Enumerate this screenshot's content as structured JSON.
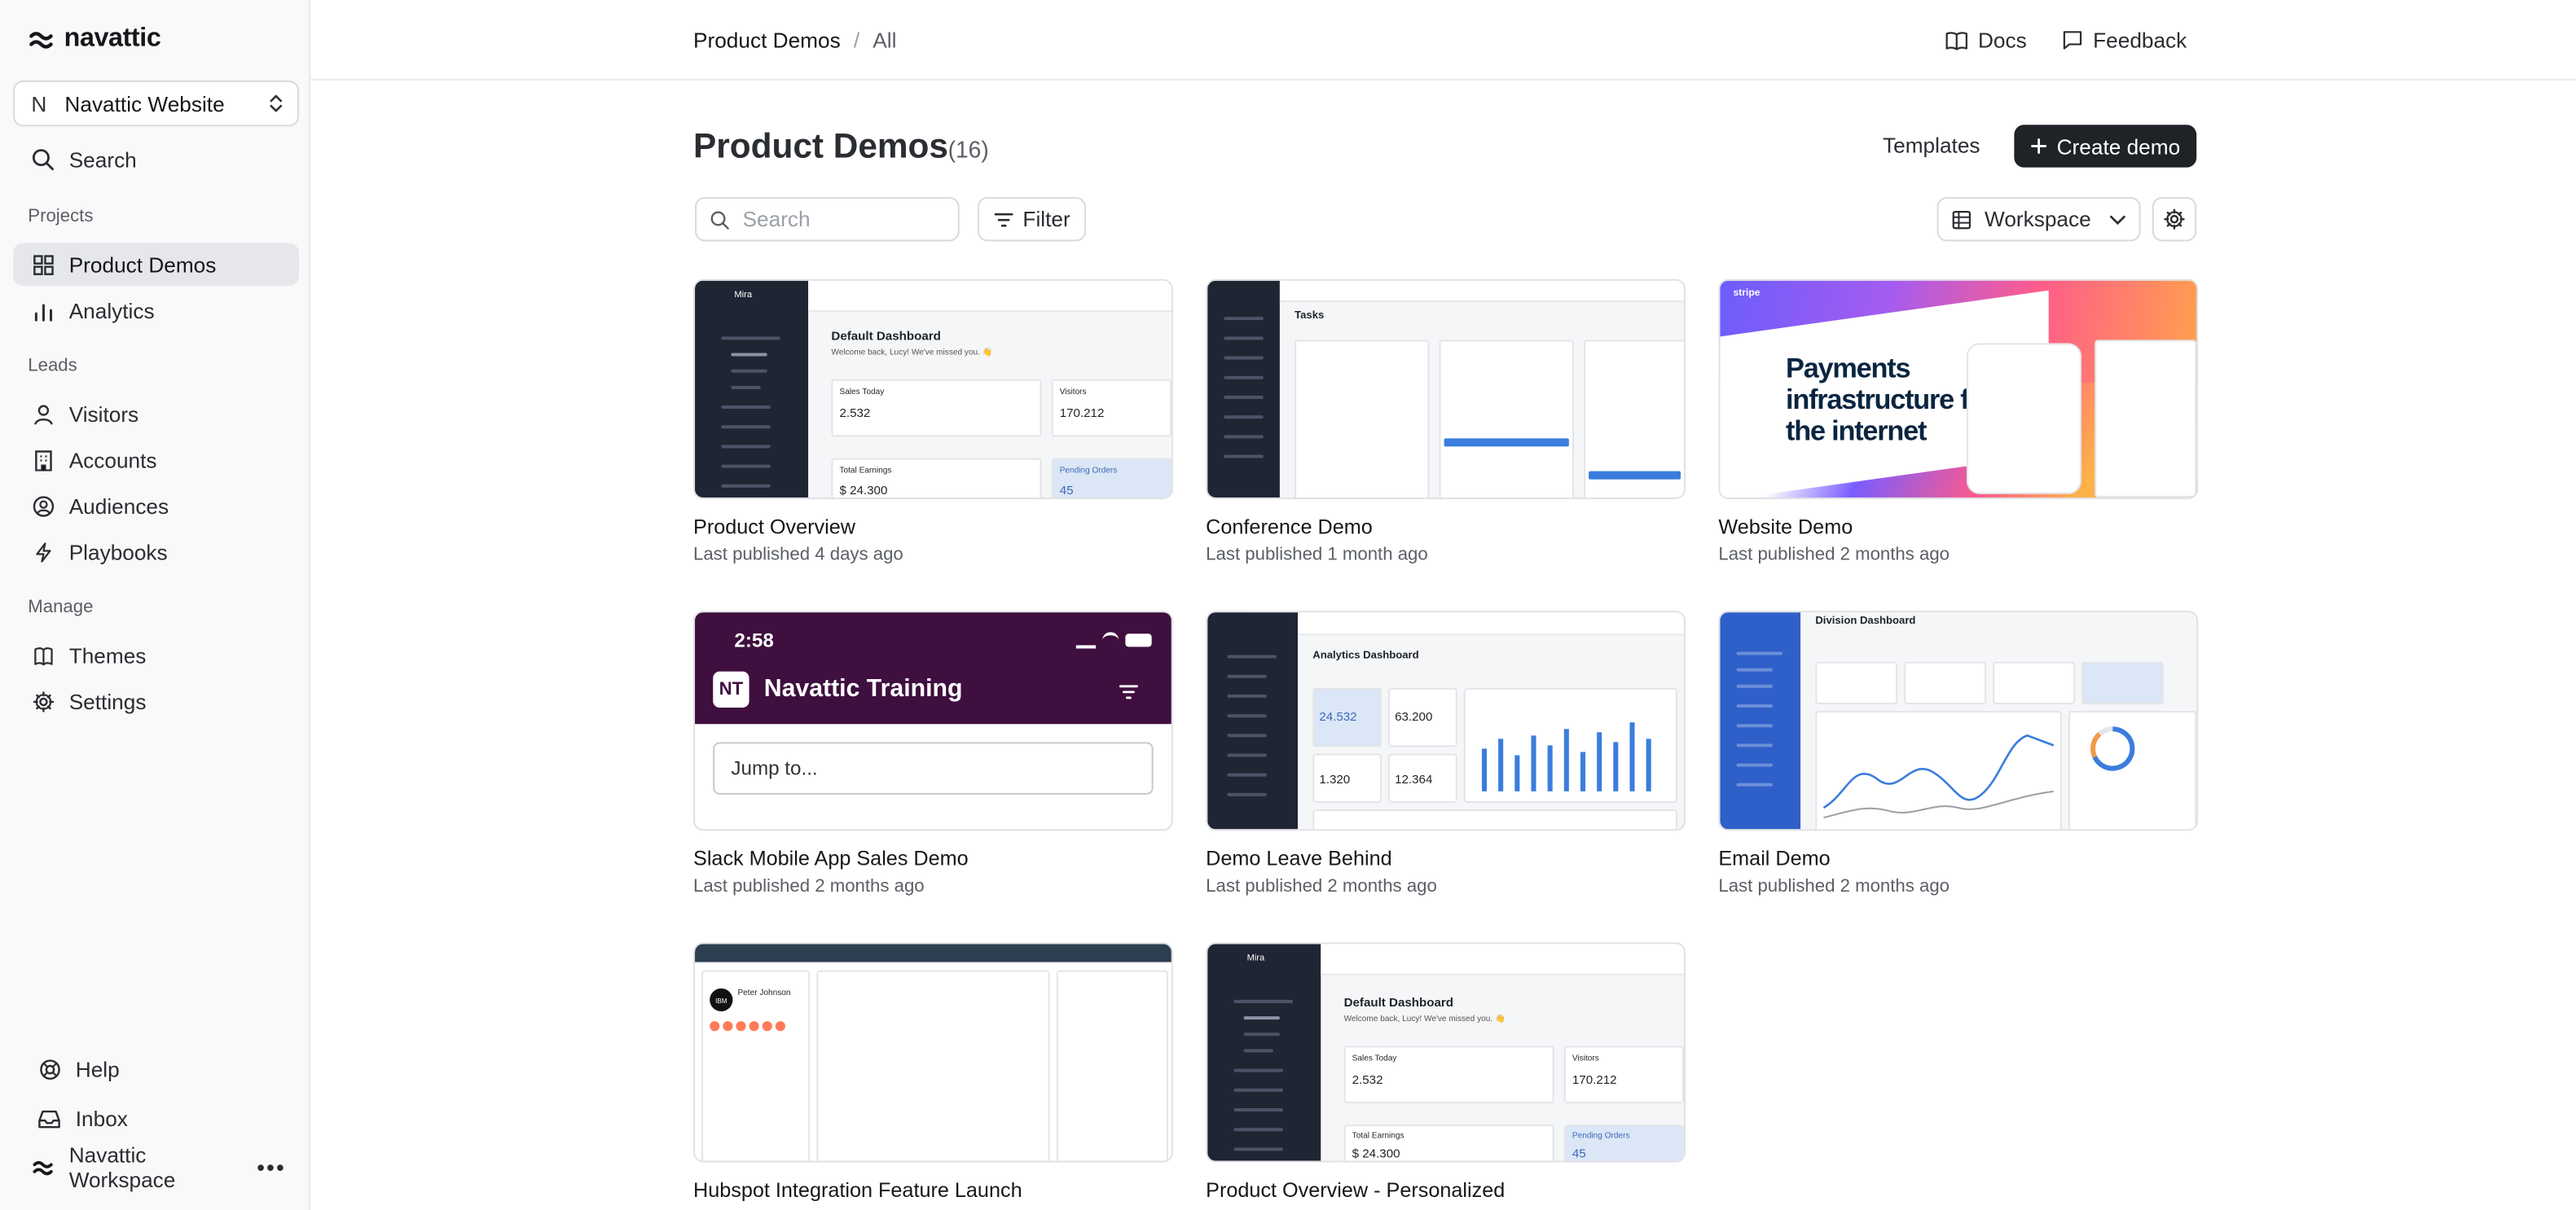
{
  "sidebar": {
    "logo_text": "navattic",
    "workspace_badge": "N",
    "workspace_name": "Navattic Website",
    "search_label": "Search",
    "projects_label": "Projects",
    "projects": [
      {
        "label": "Product Demos",
        "icon": "grid-icon",
        "active": true
      },
      {
        "label": "Analytics",
        "icon": "bar-chart-icon",
        "active": false
      }
    ],
    "leads_label": "Leads",
    "leads": [
      {
        "label": "Visitors",
        "icon": "user-icon"
      },
      {
        "label": "Accounts",
        "icon": "building-icon"
      },
      {
        "label": "Audiences",
        "icon": "user-circle-icon"
      },
      {
        "label": "Playbooks",
        "icon": "lightning-icon"
      }
    ],
    "manage_label": "Manage",
    "manage": [
      {
        "label": "Themes",
        "icon": "book-icon"
      },
      {
        "label": "Settings",
        "icon": "gear-icon"
      }
    ],
    "footer": {
      "help": "Help",
      "inbox": "Inbox",
      "workspace": "Navattic Workspace"
    }
  },
  "header": {
    "breadcrumb": [
      "Product Demos",
      "All"
    ],
    "docs": "Docs",
    "feedback": "Feedback"
  },
  "main": {
    "title": "Product Demos",
    "count": "(16)",
    "templates_label": "Templates",
    "create_label": "Create demo",
    "search_placeholder": "Search",
    "filter_label": "Filter",
    "view_label": "Workspace",
    "demos": [
      {
        "title": "Product Overview",
        "subtitle": "Last published 4 days ago"
      },
      {
        "title": "Conference Demo",
        "subtitle": "Last published 1 month ago"
      },
      {
        "title": "Website Demo",
        "subtitle": "Last published 2 months ago"
      },
      {
        "title": "Slack Mobile App Sales Demo",
        "subtitle": "Last published 2 months ago"
      },
      {
        "title": "Demo Leave Behind",
        "subtitle": "Last published 2 months ago"
      },
      {
        "title": "Email Demo",
        "subtitle": "Last published 2 months ago"
      },
      {
        "title": "Hubspot Integration Feature Launch",
        "subtitle": ""
      },
      {
        "title": "Product Overview - Personalized",
        "subtitle": ""
      }
    ],
    "thumbs": {
      "dashboard_title": "Default Dashboard",
      "welcome": "Welcome back, Lucy! We've missed you. 👋",
      "sales_today": "Sales Today",
      "sales_value": "2.532",
      "visitors": "Visitors",
      "visitors_value": "170.212",
      "total_earnings": "Total Earnings",
      "earnings_value": "$ 24.300",
      "pending_orders": "Pending Orders",
      "pending_value": "45",
      "mira": "Mira",
      "tasks": "Tasks",
      "stripe_hero": "Payments infrastructure for the internet",
      "slack_time": "2:58",
      "slack_badge": "NT",
      "slack_title": "Navattic Training",
      "slack_jump": "Jump to...",
      "analytics_title": "Analytics Dashboard",
      "analytics_values": [
        "24.532",
        "63.200",
        "1.320",
        "12.364"
      ],
      "division_title": "Division Dashboard",
      "contact_name": "Peter Johnson",
      "contact_badge": "IBM"
    }
  },
  "colors": {
    "primary_button": "#1f2328",
    "active_nav": "#e6e7ea",
    "slack_purple": "#3f0f3f",
    "dashboard_sidebar": "#1f2533",
    "accent_blue": "#3b7ddd"
  }
}
